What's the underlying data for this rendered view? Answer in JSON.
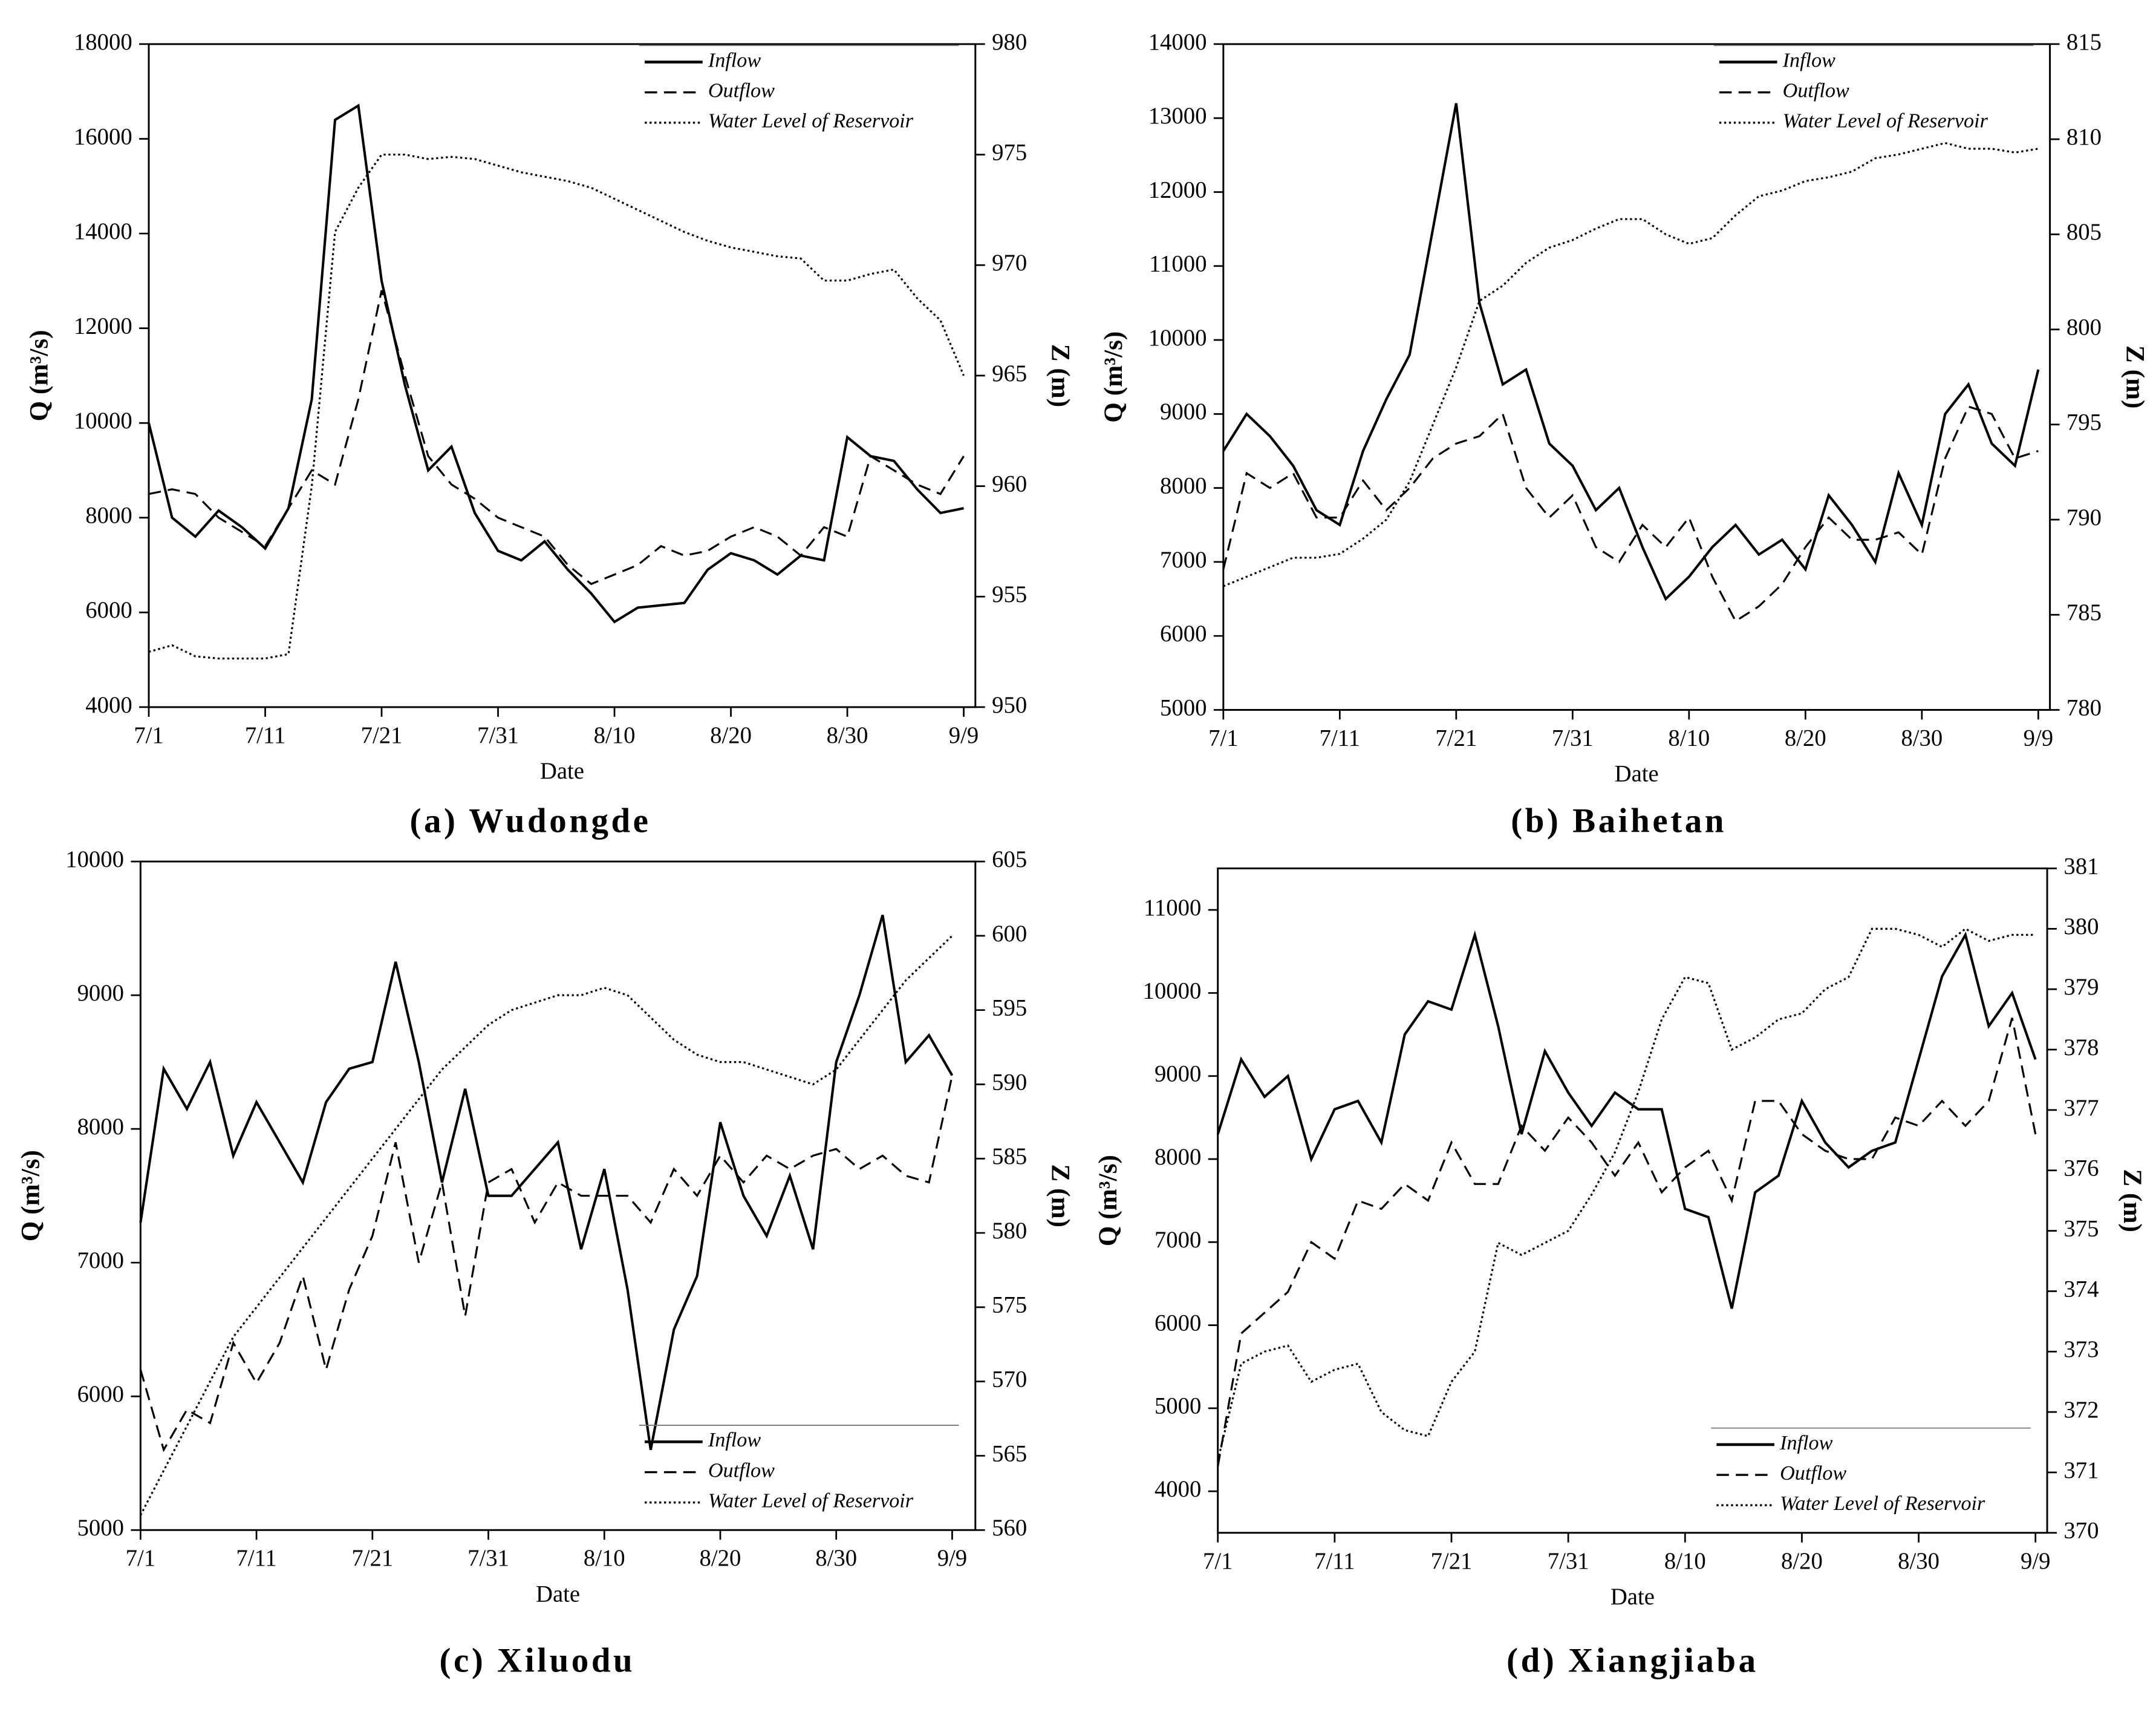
{
  "chart_data": [
    {
      "type": "line",
      "title": "(a) Wudongde",
      "x_label": "Date",
      "y_label": "Q (m³/s)",
      "y2_label": "Z (m)",
      "legend": "upper right",
      "x": [
        0,
        2,
        4,
        6,
        8,
        10,
        12,
        14,
        16,
        18,
        20,
        22,
        24,
        26,
        28,
        30,
        32,
        34,
        36,
        38,
        40,
        42,
        44,
        46,
        48,
        50,
        52,
        54,
        56,
        58,
        60,
        62,
        64,
        66,
        68,
        70
      ],
      "xlim": [
        0,
        71
      ],
      "xticks": [
        {
          "value": 0,
          "label": "7/1"
        },
        {
          "value": 10,
          "label": "7/11"
        },
        {
          "value": 20,
          "label": "7/21"
        },
        {
          "value": 30,
          "label": "7/31"
        },
        {
          "value": 40,
          "label": "8/10"
        },
        {
          "value": 50,
          "label": "8/20"
        },
        {
          "value": 60,
          "label": "8/30"
        },
        {
          "value": 70,
          "label": "9/9"
        }
      ],
      "ylim": [
        4000,
        18000
      ],
      "yticks": [
        4000,
        6000,
        8000,
        10000,
        12000,
        14000,
        16000,
        18000
      ],
      "y2lim": [
        950,
        980
      ],
      "y2ticks": [
        950,
        955,
        960,
        965,
        970,
        975,
        980
      ],
      "series": [
        {
          "name": "Inflow",
          "color": "#000000",
          "style": "solid",
          "values": [
            10000,
            8000,
            7600,
            8150,
            7800,
            7350,
            8200,
            10500,
            16400,
            16700,
            13000,
            10800,
            9000,
            9500,
            8100,
            7300,
            7100,
            7500,
            6900,
            6400,
            5800,
            6100,
            6150,
            6200,
            6900,
            7250,
            7100,
            6800,
            7200,
            7100,
            9700,
            9300,
            9200,
            8600,
            8100,
            8200
          ]
        },
        {
          "name": "Outflow",
          "color": "#000000",
          "style": "dashed",
          "values": [
            8500,
            8600,
            8500,
            8000,
            7700,
            7400,
            8200,
            9000,
            8700,
            10500,
            12800,
            11000,
            9300,
            8700,
            8400,
            8000,
            7800,
            7600,
            7000,
            6600,
            6800,
            7000,
            7400,
            7200,
            7300,
            7600,
            7800,
            7600,
            7200,
            7800,
            7600,
            9300,
            9000,
            8700,
            8500,
            9300
          ]
        },
        {
          "name": "Water Level of Reservoir",
          "color": "#000000",
          "style": "dotted",
          "axis": "y2",
          "values": [
            952.5,
            952.8,
            952.3,
            952.2,
            952.2,
            952.2,
            952.4,
            960,
            971.5,
            973.5,
            975,
            975,
            974.8,
            974.9,
            974.8,
            974.5,
            974.2,
            974,
            973.8,
            973.5,
            973,
            972.5,
            972,
            971.5,
            971.1,
            970.8,
            970.6,
            970.4,
            970.3,
            969.3,
            969.3,
            969.6,
            969.8,
            968.5,
            967.5,
            965
          ]
        }
      ]
    },
    {
      "type": "line",
      "title": "(b) Baihetan",
      "x_label": "Date",
      "y_label": "Q (m³/s)",
      "y2_label": "Z (m)",
      "legend": "upper right",
      "x": [
        0,
        2,
        4,
        6,
        8,
        10,
        12,
        14,
        16,
        18,
        20,
        22,
        24,
        26,
        28,
        30,
        32,
        34,
        36,
        38,
        40,
        42,
        44,
        46,
        48,
        50,
        52,
        54,
        56,
        58,
        60,
        62,
        64,
        66,
        68,
        70
      ],
      "xlim": [
        0,
        71
      ],
      "xticks": [
        {
          "value": 0,
          "label": "7/1"
        },
        {
          "value": 10,
          "label": "7/11"
        },
        {
          "value": 20,
          "label": "7/21"
        },
        {
          "value": 30,
          "label": "7/31"
        },
        {
          "value": 40,
          "label": "8/10"
        },
        {
          "value": 50,
          "label": "8/20"
        },
        {
          "value": 60,
          "label": "8/30"
        },
        {
          "value": 70,
          "label": "9/9"
        }
      ],
      "ylim": [
        5000,
        14000
      ],
      "yticks": [
        5000,
        6000,
        7000,
        8000,
        9000,
        10000,
        11000,
        12000,
        13000,
        14000
      ],
      "y2lim": [
        780,
        815
      ],
      "y2ticks": [
        780,
        785,
        790,
        795,
        800,
        805,
        810,
        815
      ],
      "series": [
        {
          "name": "Inflow",
          "color": "#000000",
          "style": "solid",
          "values": [
            8500,
            9000,
            8700,
            8300,
            7700,
            7500,
            8500,
            9200,
            9800,
            11500,
            13200,
            10500,
            9400,
            9600,
            8600,
            8300,
            7700,
            8000,
            7200,
            6500,
            6800,
            7200,
            7500,
            7100,
            7300,
            6900,
            7900,
            7500,
            7000,
            8200,
            7500,
            9000,
            9400,
            8600,
            8300,
            9600
          ]
        },
        {
          "name": "Outflow",
          "color": "#000000",
          "style": "dashed",
          "values": [
            6900,
            8200,
            8000,
            8200,
            7600,
            7600,
            8100,
            7700,
            8000,
            8400,
            8600,
            8700,
            9000,
            8000,
            7600,
            7900,
            7200,
            7000,
            7500,
            7200,
            7600,
            6800,
            6200,
            6400,
            6700,
            7200,
            7600,
            7300,
            7300,
            7400,
            7100,
            8400,
            9100,
            9000,
            8400,
            8500
          ]
        },
        {
          "name": "Water Level of Reservoir",
          "color": "#000000",
          "style": "dotted",
          "axis": "y2",
          "values": [
            786.5,
            787,
            787.5,
            788,
            788,
            788.2,
            789,
            790,
            792,
            795,
            798,
            801.5,
            802.3,
            803.5,
            804.3,
            804.7,
            805.3,
            805.8,
            805.8,
            805,
            804.5,
            804.8,
            806,
            807,
            807.3,
            807.8,
            808,
            808.3,
            809,
            809.2,
            809.5,
            809.8,
            809.5,
            809.5,
            809.3,
            809.5
          ]
        }
      ]
    },
    {
      "type": "line",
      "title": "(c) Xiluodu",
      "x_label": "Date",
      "y_label": "Q (m³/s)",
      "y2_label": "Z (m)",
      "legend": "lower right",
      "x": [
        0,
        2,
        4,
        6,
        8,
        10,
        12,
        14,
        16,
        18,
        20,
        22,
        24,
        26,
        28,
        30,
        32,
        34,
        36,
        38,
        40,
        42,
        44,
        46,
        48,
        50,
        52,
        54,
        56,
        58,
        60,
        62,
        64,
        66,
        68,
        70
      ],
      "xlim": [
        0,
        72
      ],
      "xticks": [
        {
          "value": 0,
          "label": "7/1"
        },
        {
          "value": 10,
          "label": "7/11"
        },
        {
          "value": 20,
          "label": "7/21"
        },
        {
          "value": 30,
          "label": "7/31"
        },
        {
          "value": 40,
          "label": "8/10"
        },
        {
          "value": 50,
          "label": "8/20"
        },
        {
          "value": 60,
          "label": "8/30"
        },
        {
          "value": 70,
          "label": "9/9"
        }
      ],
      "ylim": [
        5000,
        10000
      ],
      "yticks": [
        5000,
        6000,
        7000,
        8000,
        9000,
        10000
      ],
      "y2lim": [
        560,
        605
      ],
      "y2ticks": [
        560,
        565,
        570,
        575,
        580,
        585,
        590,
        595,
        600,
        605
      ],
      "series": [
        {
          "name": "Inflow",
          "color": "#000000",
          "style": "solid",
          "values": [
            7300,
            8450,
            8150,
            8500,
            7800,
            8200,
            7900,
            7600,
            8200,
            8450,
            8500,
            9250,
            8500,
            7600,
            8300,
            7500,
            7500,
            7700,
            7900,
            7100,
            7700,
            6800,
            5600,
            6500,
            6900,
            8050,
            7500,
            7200,
            7650,
            7100,
            8500,
            9000,
            9600,
            8500,
            8700,
            8400
          ]
        },
        {
          "name": "Outflow",
          "color": "#000000",
          "style": "dashed",
          "values": [
            6200,
            5600,
            5900,
            5800,
            6400,
            6100,
            6400,
            6900,
            6200,
            6800,
            7200,
            7900,
            7000,
            7600,
            6600,
            7600,
            7700,
            7300,
            7600,
            7500,
            7500,
            7500,
            7300,
            7700,
            7500,
            7800,
            7600,
            7800,
            7700,
            7800,
            7850,
            7700,
            7800,
            7650,
            7600,
            8400
          ]
        },
        {
          "name": "Water Level of Reservoir",
          "color": "#000000",
          "style": "dotted",
          "axis": "y2",
          "values": [
            561,
            564,
            567,
            570,
            573,
            575,
            577,
            579,
            581,
            583,
            585,
            587,
            589,
            591,
            592.5,
            594,
            595,
            595.5,
            596,
            596,
            596.5,
            596,
            594.5,
            593,
            592,
            591.5,
            591.5,
            591,
            590.5,
            590,
            591,
            593,
            595,
            597,
            598.5,
            600
          ]
        }
      ]
    },
    {
      "type": "line",
      "title": "(d) Xiangjiaba",
      "x_label": "Date",
      "y_label": "Q (m³/s)",
      "y2_label": "Z (m)",
      "legend": "lower right",
      "x": [
        0,
        2,
        4,
        6,
        8,
        10,
        12,
        14,
        16,
        18,
        20,
        22,
        24,
        26,
        28,
        30,
        32,
        34,
        36,
        38,
        40,
        42,
        44,
        46,
        48,
        50,
        52,
        54,
        56,
        58,
        60,
        62,
        64,
        66,
        68,
        70
      ],
      "xlim": [
        0,
        71
      ],
      "xticks": [
        {
          "value": 0,
          "label": "7/1"
        },
        {
          "value": 10,
          "label": "7/11"
        },
        {
          "value": 20,
          "label": "7/21"
        },
        {
          "value": 30,
          "label": "7/31"
        },
        {
          "value": 40,
          "label": "8/10"
        },
        {
          "value": 50,
          "label": "8/20"
        },
        {
          "value": 60,
          "label": "8/30"
        },
        {
          "value": 70,
          "label": "9/9"
        }
      ],
      "ylim": [
        3500,
        11500
      ],
      "yticks": [
        4000,
        5000,
        6000,
        7000,
        8000,
        9000,
        10000,
        11000
      ],
      "y2lim": [
        370,
        381
      ],
      "y2ticks": [
        370,
        371,
        372,
        373,
        374,
        375,
        376,
        377,
        378,
        379,
        380,
        381
      ],
      "series": [
        {
          "name": "Inflow",
          "color": "#000000",
          "style": "solid",
          "values": [
            8300,
            9200,
            8750,
            9000,
            8000,
            8600,
            8700,
            8200,
            9500,
            9900,
            9800,
            10700,
            9600,
            8300,
            9300,
            8800,
            8400,
            8800,
            8600,
            8600,
            7400,
            7300,
            6200,
            7600,
            7800,
            8700,
            8200,
            7900,
            8100,
            8200,
            9200,
            10200,
            10700,
            9600,
            10000,
            9200
          ]
        },
        {
          "name": "Outflow",
          "color": "#000000",
          "style": "dashed",
          "values": [
            4300,
            5900,
            6150,
            6400,
            7000,
            6800,
            7500,
            7400,
            7700,
            7500,
            8200,
            7700,
            7700,
            8400,
            8100,
            8500,
            8200,
            7800,
            8200,
            7600,
            7900,
            8100,
            7500,
            8700,
            8700,
            8300,
            8100,
            8000,
            8000,
            8500,
            8400,
            8700,
            8400,
            8700,
            9700,
            8300
          ]
        },
        {
          "name": "Water Level of Reservoir",
          "color": "#000000",
          "style": "dotted",
          "axis": "y2",
          "values": [
            371.2,
            372.8,
            373,
            373.1,
            372.5,
            372.7,
            372.8,
            372,
            371.7,
            371.6,
            372.5,
            373,
            374.8,
            374.6,
            374.8,
            375,
            375.6,
            376.3,
            377.3,
            378.5,
            379.2,
            379.1,
            378,
            378.2,
            378.5,
            378.6,
            379,
            379.2,
            380,
            380,
            379.9,
            379.7,
            380,
            379.8,
            379.9,
            379.9
          ]
        }
      ]
    }
  ]
}
